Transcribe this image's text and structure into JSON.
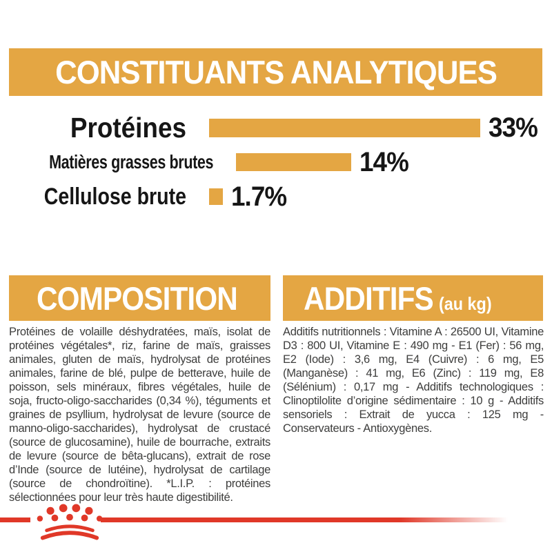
{
  "colors": {
    "accent_orange": "#E4A643",
    "brand_red": "#E03828",
    "chart_text": "#161616",
    "body_text": "#3D3D3C",
    "header_text": "#FFFFFF"
  },
  "header": {
    "title": "CONSTITUANTS ANALYTIQUES"
  },
  "chart_data": {
    "type": "bar",
    "orientation": "horizontal",
    "title": "CONSTITUANTS ANALYTIQUES",
    "categories": [
      "Protéines",
      "Matières grasses brutes",
      "Cellulose brute"
    ],
    "values": [
      33,
      14,
      1.7
    ],
    "value_labels": [
      "33%",
      "14%",
      "1.7%"
    ],
    "unit": "%",
    "xlim": [
      0,
      35
    ],
    "bar_color": "#E4A643",
    "grid": false,
    "legend": false
  },
  "composition": {
    "title": "COMPOSITION",
    "body": "Protéines de volaille déshydratées, maïs, isolat de protéines végétales*, riz, farine de maïs, graisses animales, gluten de maïs, hydrolysat de protéines animales, farine de blé, pulpe de betterave, huile de poisson, sels minéraux, fibres végétales, huile de soja, fructo-oligo-saccharides (0,34 %), téguments et graines de psyllium, hydrolysat de levure (source de manno-oligo-saccharides), hydrolysat de crustacé (source de glucosamine), huile de bourrache, extraits de levure (source de bêta-glucans), extrait de rose d’Inde (source de lutéine), hydrolysat de cartilage (source de chondroïtine). *L.I.P. : protéines sélectionnées pour leur très haute digestibilité."
  },
  "additifs": {
    "title": "ADDITIFS",
    "title_suffix": "(au kg)",
    "body": "Additifs nutritionnels : Vitamine A : 26500 UI, Vitamine D3 : 800 UI, Vitamine E : 490 mg - E1 (Fer) : 56 mg, E2 (Iode) : 3,6 mg, E4 (Cuivre) : 6 mg, E5 (Manganèse) : 41 mg, E6 (Zinc) : 119 mg, E8 (Sélénium) : 0,17 mg - Additifs technologiques : Clinoptilolite d’origine sédimentaire : 10 g - Additifs sensoriels : Extrait de yucca : 125 mg - Conservateurs - Antioxygènes."
  },
  "footer": {
    "logo": "royal-canin-crown"
  }
}
